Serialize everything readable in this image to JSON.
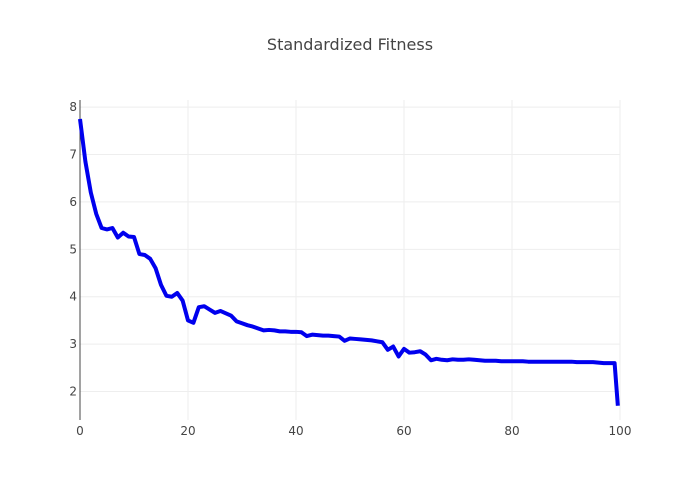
{
  "chart_data": {
    "type": "line",
    "title": "Standardized Fitness",
    "xlabel": "",
    "ylabel": "",
    "xlim": [
      0,
      100
    ],
    "ylim": [
      1.4,
      8.15
    ],
    "xticks": [
      0,
      20,
      40,
      60,
      80,
      100
    ],
    "yticks": [
      2,
      3,
      4,
      5,
      6,
      7,
      8
    ],
    "grid": true,
    "legend": "none",
    "line_color": "#0000ee",
    "series": [
      {
        "x": [
          0,
          1,
          2,
          3,
          4,
          5,
          6,
          7,
          8,
          9,
          10,
          11,
          12,
          13,
          14,
          15,
          16,
          17,
          18,
          19,
          20,
          21,
          22,
          23,
          24,
          25,
          26,
          27,
          28,
          29,
          30,
          31,
          32,
          33,
          34,
          35,
          36,
          37,
          38,
          39,
          40,
          41,
          42,
          43,
          44,
          45,
          46,
          47,
          48,
          49,
          50,
          51,
          52,
          53,
          54,
          55,
          56,
          57,
          58,
          59,
          60,
          61,
          62,
          63,
          64,
          65,
          66,
          67,
          68,
          69,
          70,
          71,
          72,
          73,
          74,
          75,
          76,
          77,
          78,
          79,
          80,
          81,
          82,
          83,
          84,
          85,
          86,
          87,
          88,
          89,
          90,
          91,
          92,
          93,
          94,
          95,
          96,
          97,
          98,
          99,
          99.6
        ],
        "y": [
          7.75,
          6.85,
          6.2,
          5.75,
          5.45,
          5.42,
          5.45,
          5.25,
          5.35,
          5.27,
          5.26,
          4.9,
          4.88,
          4.8,
          4.6,
          4.25,
          4.02,
          4.0,
          4.08,
          3.92,
          3.5,
          3.45,
          3.78,
          3.8,
          3.73,
          3.66,
          3.7,
          3.65,
          3.6,
          3.48,
          3.44,
          3.4,
          3.37,
          3.33,
          3.29,
          3.3,
          3.29,
          3.27,
          3.27,
          3.26,
          3.26,
          3.25,
          3.17,
          3.2,
          3.19,
          3.18,
          3.18,
          3.17,
          3.16,
          3.07,
          3.12,
          3.11,
          3.1,
          3.09,
          3.08,
          3.06,
          3.04,
          2.88,
          2.95,
          2.74,
          2.9,
          2.82,
          2.83,
          2.85,
          2.78,
          2.66,
          2.69,
          2.67,
          2.66,
          2.68,
          2.67,
          2.67,
          2.68,
          2.67,
          2.66,
          2.65,
          2.65,
          2.65,
          2.64,
          2.64,
          2.64,
          2.64,
          2.64,
          2.63,
          2.63,
          2.63,
          2.63,
          2.63,
          2.63,
          2.63,
          2.63,
          2.63,
          2.62,
          2.62,
          2.62,
          2.62,
          2.61,
          2.6,
          2.6,
          2.6,
          1.7
        ]
      }
    ]
  }
}
